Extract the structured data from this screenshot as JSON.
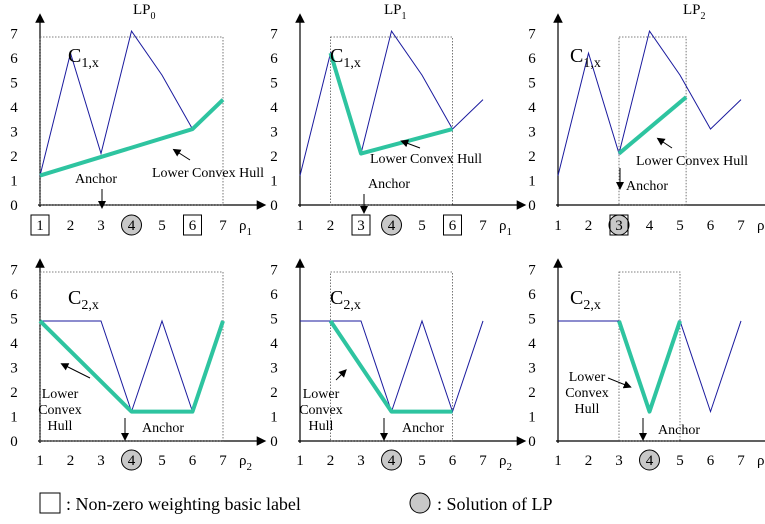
{
  "titles": [
    "LP",
    "LP",
    "LP"
  ],
  "title_subs": [
    "0",
    "1",
    "2"
  ],
  "curve_labels": {
    "top": {
      "main": "C",
      "sub": "1,x"
    },
    "bottom": {
      "main": "C",
      "sub": "2,x"
    }
  },
  "x_axis_labels": {
    "top": {
      "main": "ρ",
      "sub": "1"
    },
    "bottom": {
      "main": "ρ",
      "sub": "2"
    }
  },
  "x_ticks": [
    "1",
    "2",
    "3",
    "4",
    "5",
    "6",
    "7"
  ],
  "y_ticks": [
    "0",
    "1",
    "2",
    "3",
    "4",
    "5",
    "6",
    "7"
  ],
  "annotations": {
    "anchor": "Anchor",
    "lower_convex_hull": "Lower Convex Hull",
    "lower_convex_hull_lines": [
      "Lower",
      "Convex",
      "Hull"
    ]
  },
  "legend": {
    "square_text": ": Non-zero weighting basic label",
    "circle_text": ": Solution of LP"
  },
  "colors": {
    "hull": "#2ec4a0",
    "curve": "#1a1a9e",
    "circle_fill": "#c8c8c8"
  },
  "panels": [
    {
      "title_index": 0,
      "curve": "top",
      "xlabel": "top",
      "boxed": [
        1,
        6
      ],
      "circled": [
        4
      ],
      "curve_x": [
        1,
        2,
        3,
        4,
        5,
        6,
        7
      ],
      "curve_y": [
        1.2,
        6.2,
        2.1,
        7.1,
        5.3,
        3.1,
        4.3
      ],
      "hull_x": [
        1,
        6,
        7
      ],
      "hull_y": [
        1.2,
        3.1,
        4.3
      ],
      "window": [
        1,
        7
      ]
    },
    {
      "title_index": 1,
      "curve": "top",
      "xlabel": "top",
      "boxed": [
        3,
        6
      ],
      "circled": [
        4
      ],
      "curve_x": [
        1,
        2,
        3,
        4,
        5,
        6,
        7
      ],
      "curve_y": [
        1.2,
        6.2,
        2.1,
        7.1,
        5.3,
        3.1,
        4.3
      ],
      "hull_x": [
        2,
        3,
        6
      ],
      "hull_y": [
        6.2,
        2.1,
        3.1
      ],
      "window": [
        2,
        6
      ]
    },
    {
      "title_index": 2,
      "curve": "top",
      "xlabel": "top",
      "boxed": [
        3
      ],
      "circled": [
        3
      ],
      "curve_x": [
        1,
        2,
        3,
        4,
        5,
        6,
        7
      ],
      "curve_y": [
        1.2,
        6.2,
        2.1,
        7.1,
        5.3,
        3.1,
        4.3
      ],
      "hull_x": [
        3,
        5.2
      ],
      "hull_y": [
        2.1,
        4.4
      ],
      "window": [
        3,
        5.2
      ]
    },
    {
      "title_index": null,
      "curve": "bottom",
      "xlabel": "bottom",
      "boxed": [],
      "circled": [
        4
      ],
      "curve_x": [
        1,
        3,
        4,
        5,
        6,
        7
      ],
      "curve_y": [
        4.9,
        4.9,
        1.2,
        4.9,
        1.2,
        4.9
      ],
      "hull_x": [
        1,
        4,
        6,
        7
      ],
      "hull_y": [
        4.9,
        1.2,
        1.2,
        4.9
      ],
      "window": [
        1,
        7
      ]
    },
    {
      "title_index": null,
      "curve": "bottom",
      "xlabel": "bottom",
      "boxed": [],
      "circled": [
        4
      ],
      "curve_x": [
        1,
        3,
        4,
        5,
        6,
        7
      ],
      "curve_y": [
        4.9,
        4.9,
        1.2,
        4.9,
        1.2,
        4.9
      ],
      "hull_x": [
        2,
        4,
        6
      ],
      "hull_y": [
        4.9,
        1.2,
        1.2
      ],
      "window": [
        2,
        6
      ]
    },
    {
      "title_index": null,
      "curve": "bottom",
      "xlabel": "bottom",
      "boxed": [],
      "circled": [
        4
      ],
      "curve_x": [
        1,
        3,
        4,
        5,
        6,
        7
      ],
      "curve_y": [
        4.9,
        4.9,
        1.2,
        4.9,
        1.2,
        4.9
      ],
      "hull_x": [
        3,
        4,
        5
      ],
      "hull_y": [
        4.9,
        1.2,
        4.9
      ],
      "window": [
        3,
        5
      ]
    }
  ]
}
